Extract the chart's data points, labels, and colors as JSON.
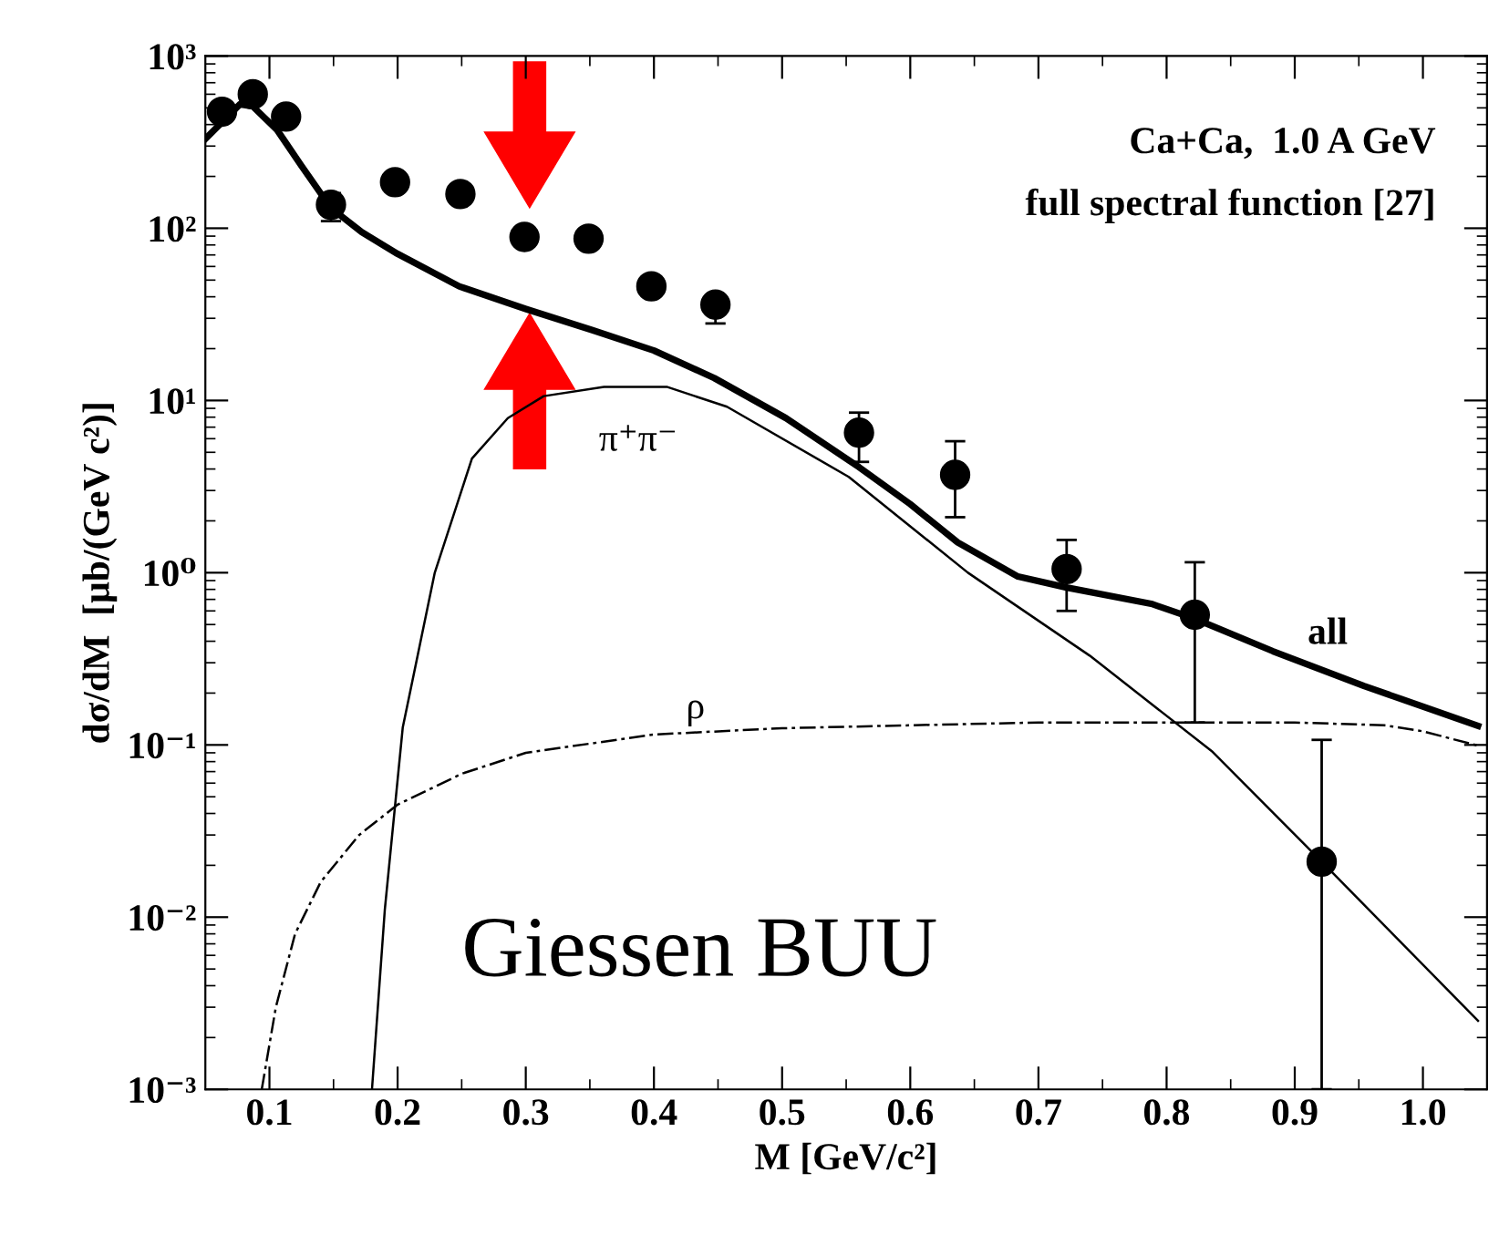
{
  "chart_data": {
    "type": "line",
    "xlabel": "M [GeV/c²]",
    "ylabel": "dσ/dM  [μb/(GeV c²)]",
    "log": "y",
    "xlim": [
      0.05,
      1.05
    ],
    "ylim": [
      0.001,
      1000
    ],
    "xticks": [
      0.1,
      0.2,
      0.3,
      0.4,
      0.5,
      0.6,
      0.7,
      0.8,
      0.9,
      {
        "value": 1.0,
        "label": "1.0"
      }
    ],
    "yticks": [
      {
        "value": 0.001,
        "label": "10⁻³"
      },
      {
        "value": 0.01,
        "label": "10⁻²"
      },
      {
        "value": 0.1,
        "label": "10⁻¹"
      },
      {
        "value": 1,
        "label": "10⁰"
      },
      {
        "value": 10,
        "label": "10¹"
      },
      {
        "value": 100,
        "label": "10²"
      },
      {
        "value": 1000,
        "label": "10³"
      }
    ],
    "grid": false,
    "series": [
      {
        "color": "#000000",
        "line_style": "solid",
        "x": [
          0.05,
          0.077,
          0.087,
          0.106,
          0.125,
          0.148,
          0.172,
          0.2,
          0.248,
          0.3,
          0.352,
          0.4,
          0.447,
          0.503,
          0.56,
          0.6,
          0.637,
          0.684,
          0.722,
          0.788,
          0.822,
          0.883,
          0.954,
          1.043
        ],
        "values": [
          330,
          525,
          510,
          372,
          230,
          131,
          95,
          71,
          46,
          34,
          25.6,
          19.5,
          13.5,
          7.9,
          4.1,
          2.5,
          1.5,
          0.95,
          0.82,
          0.66,
          0.54,
          0.35,
          0.22,
          0.129
        ]
      },
      {
        "color": "#000000",
        "line_style": "solid",
        "x": [
          0.18,
          0.19,
          0.204,
          0.229,
          0.258,
          0.286,
          0.314,
          0.361,
          0.41,
          0.457,
          0.552,
          0.645,
          0.74,
          0.836,
          0.921,
          1.043
        ],
        "values": [
          0.001,
          0.011,
          0.126,
          1.0,
          4.6,
          7.9,
          10.6,
          12,
          12,
          9.2,
          3.6,
          1.0,
          0.33,
          0.091,
          0.021,
          0.0025
        ]
      },
      {
        "color": "#000000",
        "line_style": "dashed",
        "x": [
          0.094,
          0.105,
          0.12,
          0.14,
          0.17,
          0.2,
          0.25,
          0.3,
          0.4,
          0.5,
          0.6,
          0.7,
          0.8,
          0.9,
          0.97,
          1.0,
          1.043
        ],
        "values": [
          0.001,
          0.003,
          0.008,
          0.016,
          0.03,
          0.045,
          0.068,
          0.09,
          0.115,
          0.125,
          0.13,
          0.135,
          0.135,
          0.135,
          0.13,
          0.12,
          0.099
        ]
      },
      {
        "type": "scatter",
        "color": "#000000",
        "marker": "circle",
        "x": [
          0.063,
          0.087,
          0.113,
          0.148,
          0.198,
          0.249,
          0.299,
          0.349,
          0.398,
          0.448,
          0.56,
          0.635,
          0.722,
          0.822,
          0.921
        ],
        "values": [
          475,
          600,
          445,
          137,
          185,
          158,
          89,
          87,
          46,
          36,
          6.5,
          3.7,
          1.05,
          0.57,
          0.021
        ],
        "errors": [
          null,
          null,
          null,
          [
            110,
            160
          ],
          null,
          null,
          null,
          null,
          null,
          [
            28,
            41
          ],
          [
            4.4,
            8.5
          ],
          [
            2.1,
            5.8
          ],
          [
            0.6,
            1.55
          ],
          [
            0.135,
            1.15
          ],
          [
            0.001,
            0.107
          ]
        ]
      }
    ],
    "annotations": [
      "all",
      "π⁺π⁻",
      "ρ",
      "Ca+Ca,  1.0 A GeV",
      "full spectral function [27]",
      "Giessen BUU"
    ]
  }
}
